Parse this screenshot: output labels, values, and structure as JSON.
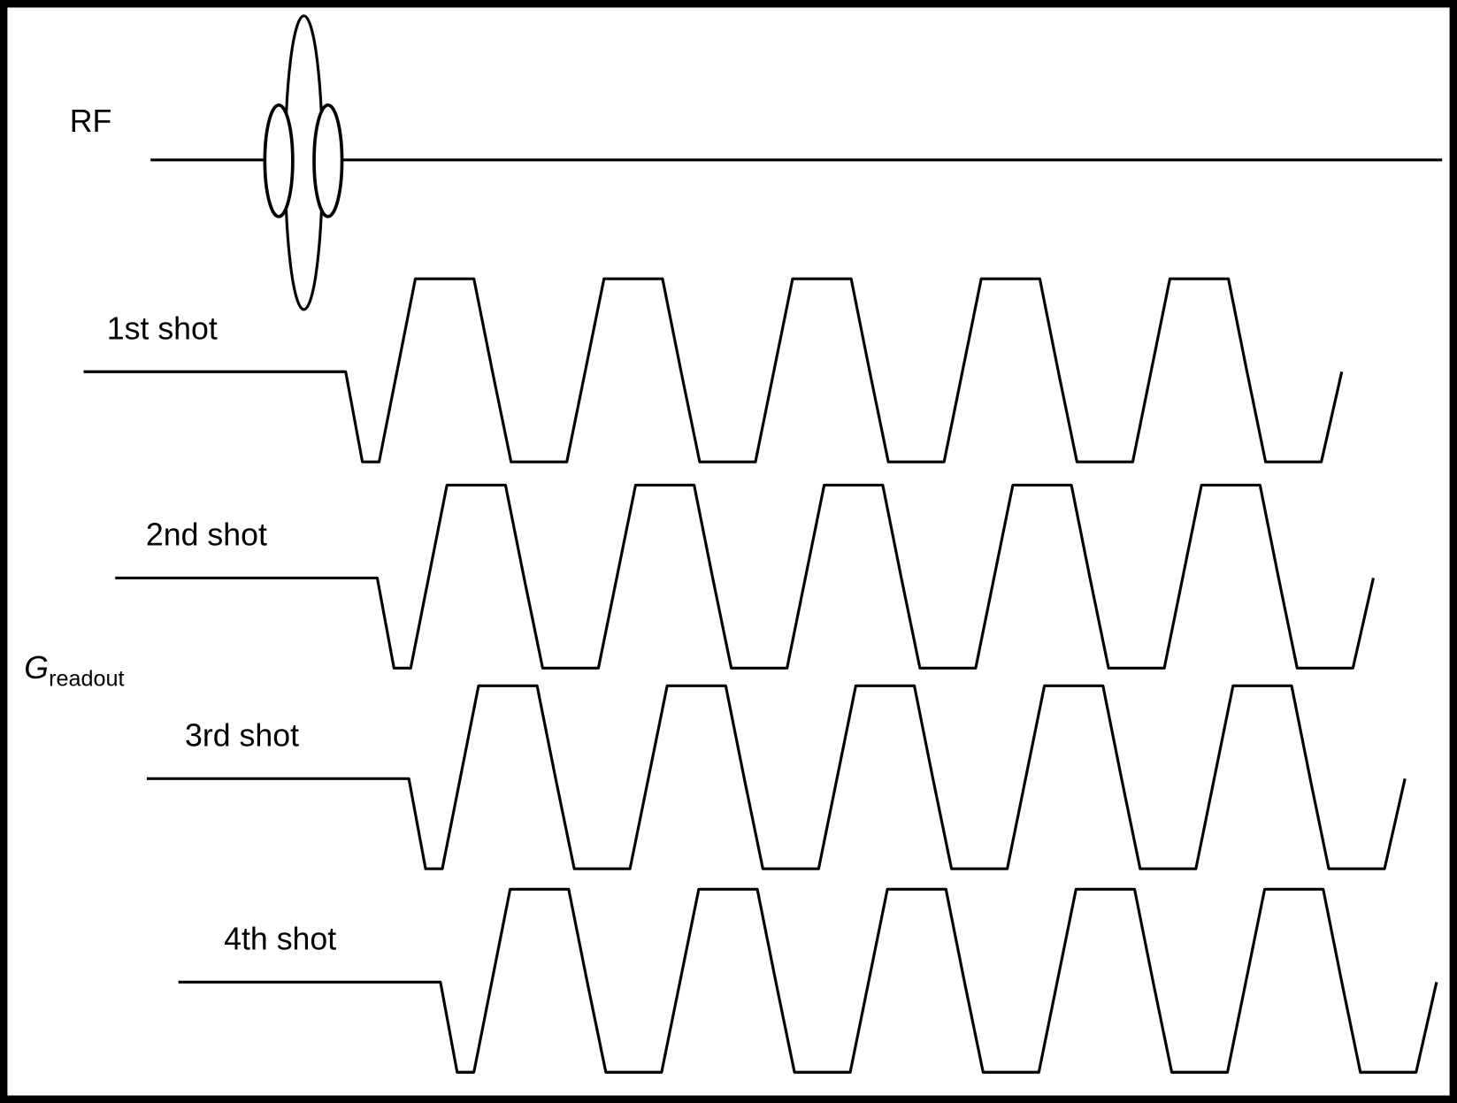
{
  "rf_label": "RF",
  "shots": [
    "1st shot",
    "2nd shot",
    "3rd shot",
    "4th shot"
  ],
  "gradient_label": {
    "symbol": "G",
    "subscript": "readout"
  }
}
